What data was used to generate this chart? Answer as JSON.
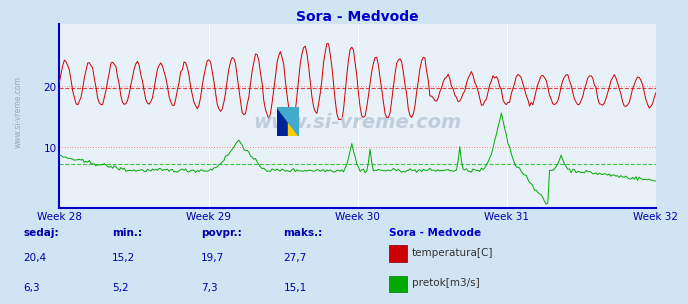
{
  "title": "Sora - Medvode",
  "title_color": "#0000cc",
  "bg_color": "#d0e4f4",
  "plot_bg_color": "#e8f0f8",
  "grid_color": "#ffffff",
  "axis_color": "#0000cc",
  "week_labels": [
    "Week 28",
    "Week 29",
    "Week 30",
    "Week 31",
    "Week 32"
  ],
  "temp_color": "#cc0000",
  "flow_color": "#00aa00",
  "temp_avg": 19.7,
  "flow_avg": 7.3,
  "n_points": 360,
  "watermark": "www.si-vreme.com",
  "legend_title": "Sora - Medvode",
  "table_headers": [
    "sedaj:",
    "min.:",
    "povpr.:",
    "maks.:"
  ],
  "table_values_temp": [
    "20,4",
    "15,2",
    "19,7",
    "27,7"
  ],
  "table_values_flow": [
    "6,3",
    "5,2",
    "7,3",
    "15,1"
  ],
  "table_label_temp": "temperatura[C]",
  "table_label_flow": "pretok[m3/s]",
  "text_color": "#0000aa",
  "hline_10": 10.0,
  "hline_20": 20.0
}
